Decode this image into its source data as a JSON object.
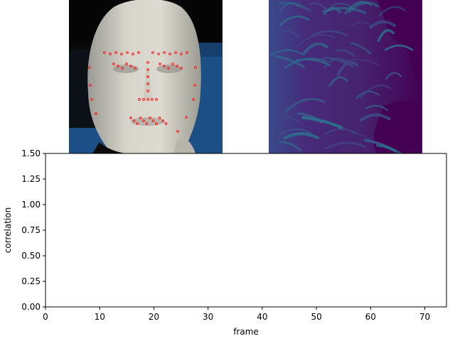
{
  "figure": {
    "face_panel": {
      "content": "face photo with red facial landmark markers",
      "background": "#1c4f86"
    },
    "flow_panel": {
      "content": "purple-teal optical flow magnitude field",
      "colors": [
        "#440154",
        "#3b4d8a",
        "#2a7a8e"
      ]
    }
  },
  "chart_data": {
    "type": "line",
    "title": "",
    "xlabel": "frame",
    "ylabel": "correlation",
    "xlim": [
      0,
      74
    ],
    "ylim": [
      0,
      1.5
    ],
    "xticks": [
      "0",
      "10",
      "20",
      "30",
      "40",
      "50",
      "60",
      "70"
    ],
    "yticks": [
      "0.00",
      "0.25",
      "0.50",
      "0.75",
      "1.00",
      "1.25",
      "1.50"
    ],
    "series": [],
    "grid": false,
    "legend": "none"
  }
}
